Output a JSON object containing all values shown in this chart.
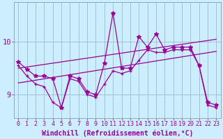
{
  "title": "",
  "xlabel": "Windchill (Refroidissement éolien,°C)",
  "ylabel": "",
  "bg_color": "#cceeff",
  "line_color": "#990099",
  "x_ticks": [
    0,
    1,
    2,
    3,
    4,
    5,
    6,
    7,
    8,
    9,
    10,
    11,
    12,
    13,
    14,
    15,
    16,
    17,
    18,
    19,
    20,
    21,
    22,
    23
  ],
  "y_ticks": [
    9,
    10
  ],
  "ylim": [
    8.55,
    10.75
  ],
  "xlim": [
    -0.5,
    23.5
  ],
  "series1_x": [
    0,
    1,
    2,
    3,
    4,
    5,
    6,
    7,
    8,
    9,
    10,
    11,
    12,
    13,
    14,
    15,
    16,
    17,
    18,
    19,
    20,
    21,
    22,
    23
  ],
  "series1_y": [
    9.62,
    9.48,
    9.35,
    9.35,
    9.3,
    8.75,
    9.35,
    9.3,
    9.05,
    9.0,
    9.6,
    10.55,
    9.5,
    9.5,
    10.1,
    9.9,
    10.15,
    9.85,
    9.9,
    9.9,
    9.9,
    9.55,
    8.85,
    8.8
  ],
  "series2_x": [
    0,
    1,
    2,
    3,
    4,
    5,
    6,
    7,
    8,
    9,
    10,
    11,
    12,
    13,
    14,
    15,
    16,
    17,
    18,
    19,
    20,
    21,
    22,
    23
  ],
  "series2_y": [
    9.55,
    9.35,
    9.2,
    9.15,
    8.85,
    8.75,
    9.3,
    9.25,
    9.0,
    8.95,
    9.2,
    9.45,
    9.4,
    9.45,
    9.65,
    9.85,
    9.8,
    9.8,
    9.85,
    9.85,
    9.85,
    9.55,
    8.8,
    8.75
  ],
  "trend1_x": [
    0,
    23
  ],
  "trend1_y": [
    9.5,
    10.05
  ],
  "trend2_x": [
    0,
    23
  ],
  "trend2_y": [
    9.22,
    9.82
  ],
  "marker_size": 3.5,
  "linewidth": 0.9,
  "grid_color": "#aaddcc",
  "tick_fontsize": 6,
  "label_fontsize": 7,
  "grid_linewidth": 0.6
}
